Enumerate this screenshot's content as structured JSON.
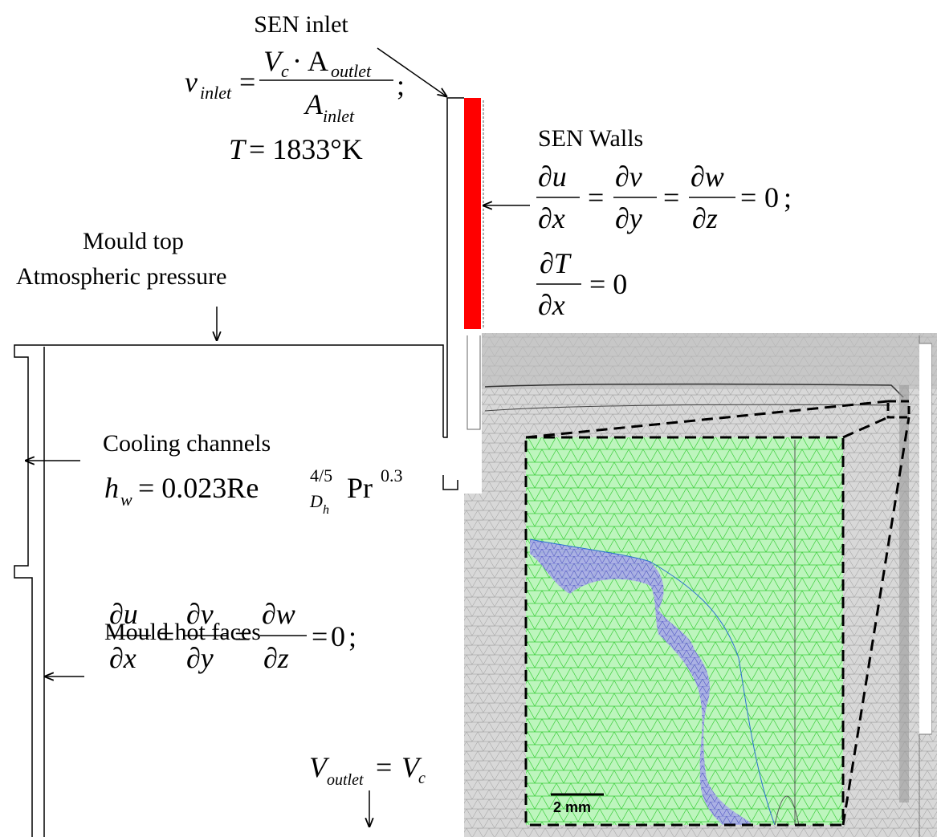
{
  "sen_inlet": {
    "title": "SEN inlet",
    "velocity": {
      "symbol": "v",
      "symbol_sub": "inlet",
      "equals": "=",
      "numerator": "V",
      "numerator_sub": "c",
      "numerator_mid": "· A",
      "numerator_sub2": "outlet",
      "denominator": "A",
      "denominator_sub": "inlet",
      "end": ";"
    },
    "temperature": {
      "symbol": "T",
      "rest": "= 1833°K"
    }
  },
  "sen_walls": {
    "title": "SEN Walls",
    "velocity_gradients": [
      {
        "num": "∂u",
        "den": "∂x"
      },
      {
        "num": "∂v",
        "den": "∂y"
      },
      {
        "num": "∂w",
        "den": "∂z"
      }
    ],
    "equals": "=",
    "zero": "0",
    "end": ";",
    "temperature_gradient": {
      "num": "∂T",
      "den": "∂x",
      "rest": "= 0"
    }
  },
  "mould_top": {
    "title": "Mould top",
    "subtitle": "Atmospheric pressure"
  },
  "cooling_channels": {
    "title": "Cooling channels",
    "symbol": "h",
    "symbol_sub": "w",
    "rest": "= 0.023Re",
    "re_sup": "4/5",
    "re_sub": "D",
    "re_sub_sub": "h",
    "pr": "Pr",
    "pr_sup": "0.3"
  },
  "mould_hot_faces": {
    "title": "Mould hot faces",
    "velocity_gradients": [
      {
        "num": "∂u",
        "den": "∂x"
      },
      {
        "num": "∂v",
        "den": "∂y"
      },
      {
        "num": "∂w",
        "den": "∂z"
      }
    ],
    "equals": "=",
    "zero": "0",
    "end": ";"
  },
  "outlet": {
    "symbol": "V",
    "symbol_sub": "outlet",
    "equals": "=",
    "rhs": "V",
    "rhs_sub": "c"
  },
  "scale_bar": "2 mm"
}
